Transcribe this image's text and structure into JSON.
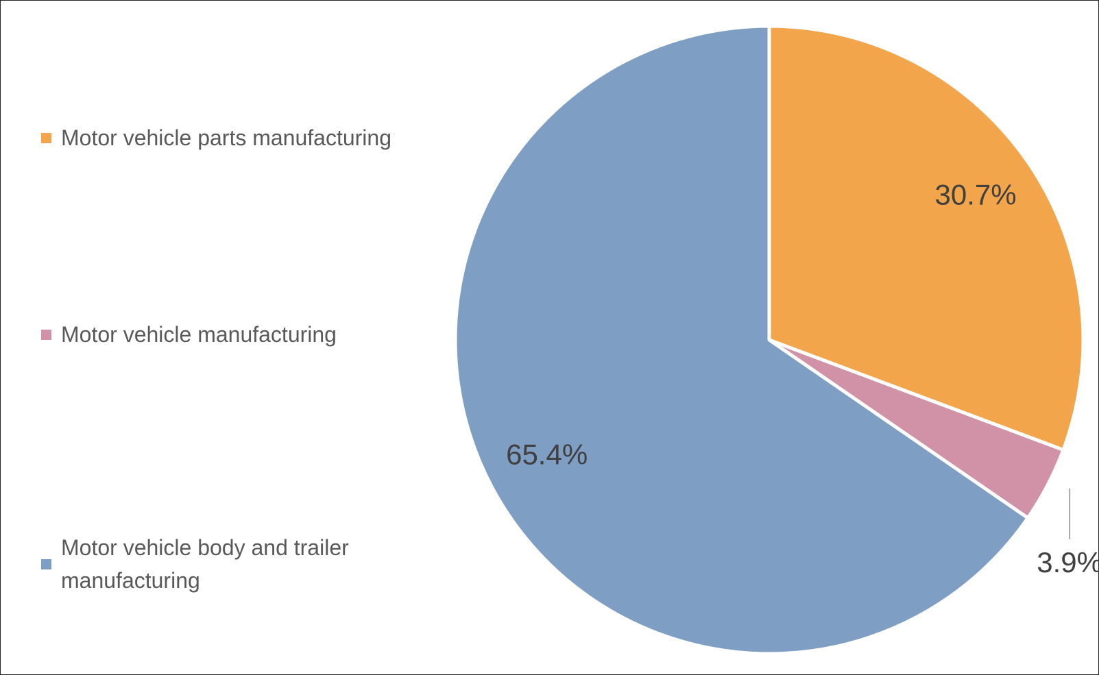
{
  "chart_data": {
    "type": "pie",
    "series": [
      {
        "name": "Motor vehicle parts manufacturing",
        "color": "#F2A54A",
        "values": [
          30.7
        ],
        "value_labels": [
          "30.7%"
        ]
      },
      {
        "name": "Motor vehicle manufacturing",
        "color": "#D192A8",
        "values": [
          3.9
        ],
        "value_labels": [
          "3.9%"
        ]
      },
      {
        "name": "Motor vehicle body and trailer manufacturing",
        "color": "#7F9EC4",
        "values": [
          65.4
        ],
        "value_labels": [
          "65.4%"
        ]
      }
    ],
    "legend": "left"
  }
}
